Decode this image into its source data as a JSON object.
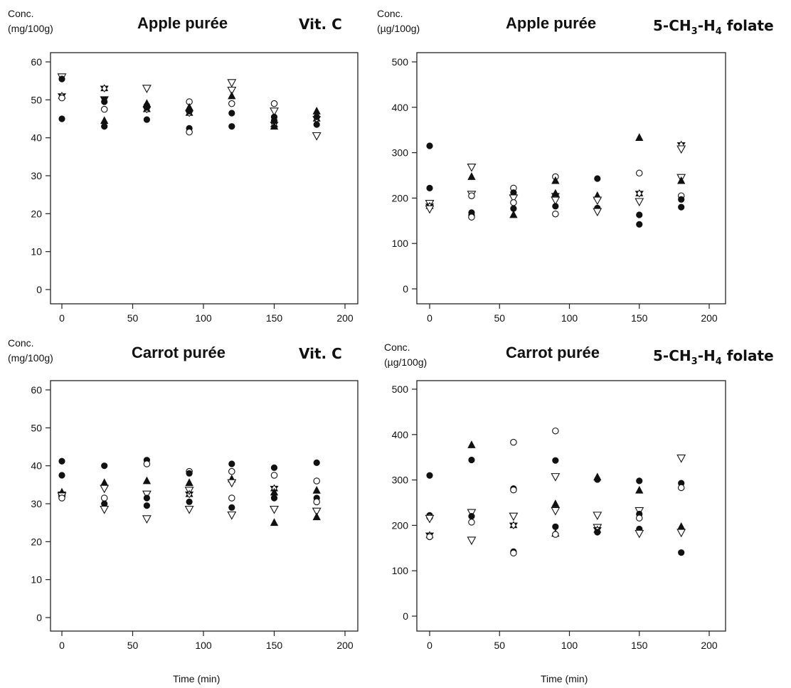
{
  "chart_data": [
    {
      "type": "scatter",
      "title": "Apple purée",
      "nutrient_label": "Vit. C",
      "ylabel_line1": "Conc.",
      "ylabel_line2": "(mg/100g)",
      "xlabel": "",
      "xlim": [
        0,
        200
      ],
      "ylim": [
        0,
        60
      ],
      "xticks": [
        0,
        50,
        100,
        150,
        200
      ],
      "yticks": [
        0,
        10,
        20,
        30,
        40,
        50,
        60
      ],
      "grid": false,
      "points": [
        {
          "x": 0,
          "y": 56,
          "m": "tri-down"
        },
        {
          "x": 0,
          "y": 55.5,
          "m": "dot"
        },
        {
          "x": 0,
          "y": 51,
          "m": "star"
        },
        {
          "x": 0,
          "y": 50.5,
          "m": "circle"
        },
        {
          "x": 0,
          "y": 45,
          "m": "dot"
        },
        {
          "x": 30,
          "y": 53,
          "m": "star"
        },
        {
          "x": 30,
          "y": 50,
          "m": "tri-down-filled"
        },
        {
          "x": 30,
          "y": 49.5,
          "m": "dot"
        },
        {
          "x": 30,
          "y": 47.5,
          "m": "circle"
        },
        {
          "x": 30,
          "y": 44.5,
          "m": "tri-up"
        },
        {
          "x": 30,
          "y": 43,
          "m": "dot"
        },
        {
          "x": 60,
          "y": 53,
          "m": "tri-down"
        },
        {
          "x": 60,
          "y": 49,
          "m": "tri-up"
        },
        {
          "x": 60,
          "y": 48.5,
          "m": "dot"
        },
        {
          "x": 60,
          "y": 48,
          "m": "dot"
        },
        {
          "x": 60,
          "y": 47.5,
          "m": "star"
        },
        {
          "x": 60,
          "y": 44.8,
          "m": "dot"
        },
        {
          "x": 90,
          "y": 49.5,
          "m": "circle"
        },
        {
          "x": 90,
          "y": 48,
          "m": "tri-up"
        },
        {
          "x": 90,
          "y": 47,
          "m": "dot"
        },
        {
          "x": 90,
          "y": 46.5,
          "m": "star"
        },
        {
          "x": 90,
          "y": 42.5,
          "m": "dot"
        },
        {
          "x": 90,
          "y": 41.5,
          "m": "circle"
        },
        {
          "x": 120,
          "y": 54.5,
          "m": "tri-down"
        },
        {
          "x": 120,
          "y": 52.5,
          "m": "tri-down"
        },
        {
          "x": 120,
          "y": 51,
          "m": "tri-up"
        },
        {
          "x": 120,
          "y": 49,
          "m": "circle"
        },
        {
          "x": 120,
          "y": 46.5,
          "m": "dot"
        },
        {
          "x": 120,
          "y": 43,
          "m": "dot"
        },
        {
          "x": 150,
          "y": 49,
          "m": "circle"
        },
        {
          "x": 150,
          "y": 47,
          "m": "tri-down"
        },
        {
          "x": 150,
          "y": 45.5,
          "m": "dot"
        },
        {
          "x": 150,
          "y": 44.5,
          "m": "dot"
        },
        {
          "x": 150,
          "y": 43.5,
          "m": "star"
        },
        {
          "x": 150,
          "y": 43,
          "m": "tri-up"
        },
        {
          "x": 180,
          "y": 47,
          "m": "tri-up"
        },
        {
          "x": 180,
          "y": 45.5,
          "m": "dot"
        },
        {
          "x": 180,
          "y": 45,
          "m": "star"
        },
        {
          "x": 180,
          "y": 43.5,
          "m": "dot"
        },
        {
          "x": 180,
          "y": 40.5,
          "m": "tri-down"
        }
      ]
    },
    {
      "type": "scatter",
      "title": "Apple purée",
      "nutrient_label": "5-CH3-H4 folate",
      "ylabel_line1": "Conc.",
      "ylabel_line2": "(µg/100g)",
      "xlabel": "",
      "xlim": [
        0,
        200
      ],
      "ylim": [
        0,
        500
      ],
      "xticks": [
        0,
        50,
        100,
        150,
        200
      ],
      "yticks": [
        0,
        100,
        200,
        300,
        400,
        500
      ],
      "grid": false,
      "points": [
        {
          "x": 0,
          "y": 315,
          "m": "dot"
        },
        {
          "x": 0,
          "y": 222,
          "m": "dot"
        },
        {
          "x": 0,
          "y": 188,
          "m": "tri-down"
        },
        {
          "x": 0,
          "y": 182,
          "m": "star"
        },
        {
          "x": 0,
          "y": 176,
          "m": "tri-down"
        },
        {
          "x": 30,
          "y": 268,
          "m": "tri-down"
        },
        {
          "x": 30,
          "y": 247,
          "m": "tri-up"
        },
        {
          "x": 30,
          "y": 208,
          "m": "tri-down"
        },
        {
          "x": 30,
          "y": 205,
          "m": "circle"
        },
        {
          "x": 30,
          "y": 168,
          "m": "dot"
        },
        {
          "x": 30,
          "y": 162,
          "m": "dot"
        },
        {
          "x": 30,
          "y": 158,
          "m": "circle"
        },
        {
          "x": 60,
          "y": 222,
          "m": "circle"
        },
        {
          "x": 60,
          "y": 212,
          "m": "dot"
        },
        {
          "x": 60,
          "y": 200,
          "m": "tri-down"
        },
        {
          "x": 60,
          "y": 190,
          "m": "circle"
        },
        {
          "x": 60,
          "y": 177,
          "m": "dot"
        },
        {
          "x": 60,
          "y": 163,
          "m": "tri-up"
        },
        {
          "x": 90,
          "y": 247,
          "m": "circle"
        },
        {
          "x": 90,
          "y": 238,
          "m": "tri-up"
        },
        {
          "x": 90,
          "y": 210,
          "m": "tri-up"
        },
        {
          "x": 90,
          "y": 205,
          "m": "star"
        },
        {
          "x": 90,
          "y": 195,
          "m": "tri-down"
        },
        {
          "x": 90,
          "y": 182,
          "m": "dot"
        },
        {
          "x": 90,
          "y": 165,
          "m": "circle"
        },
        {
          "x": 120,
          "y": 243,
          "m": "dot"
        },
        {
          "x": 120,
          "y": 205,
          "m": "tri-up"
        },
        {
          "x": 120,
          "y": 195,
          "m": "tri-down"
        },
        {
          "x": 120,
          "y": 178,
          "m": "dot"
        },
        {
          "x": 120,
          "y": 170,
          "m": "tri-down"
        },
        {
          "x": 150,
          "y": 333,
          "m": "tri-up"
        },
        {
          "x": 150,
          "y": 255,
          "m": "circle"
        },
        {
          "x": 150,
          "y": 210,
          "m": "star"
        },
        {
          "x": 150,
          "y": 192,
          "m": "tri-down"
        },
        {
          "x": 150,
          "y": 163,
          "m": "dot"
        },
        {
          "x": 150,
          "y": 142,
          "m": "dot"
        },
        {
          "x": 180,
          "y": 317,
          "m": "star"
        },
        {
          "x": 180,
          "y": 308,
          "m": "tri-down"
        },
        {
          "x": 180,
          "y": 245,
          "m": "tri-down"
        },
        {
          "x": 180,
          "y": 238,
          "m": "tri-up"
        },
        {
          "x": 180,
          "y": 205,
          "m": "circle"
        },
        {
          "x": 180,
          "y": 197,
          "m": "dot"
        },
        {
          "x": 180,
          "y": 180,
          "m": "dot"
        }
      ]
    },
    {
      "type": "scatter",
      "title": "Carrot purée",
      "nutrient_label": "Vit. C",
      "ylabel_line1": "Conc.",
      "ylabel_line2": "(mg/100g)",
      "xlabel": "Time (min)",
      "xlim": [
        0,
        200
      ],
      "ylim": [
        0,
        60
      ],
      "xticks": [
        0,
        50,
        100,
        150,
        200
      ],
      "yticks": [
        0,
        10,
        20,
        30,
        40,
        50,
        60
      ],
      "grid": false,
      "points": [
        {
          "x": 0,
          "y": 41.2,
          "m": "dot"
        },
        {
          "x": 0,
          "y": 37.5,
          "m": "dot"
        },
        {
          "x": 0,
          "y": 33,
          "m": "tri-up"
        },
        {
          "x": 0,
          "y": 32.5,
          "m": "star"
        },
        {
          "x": 0,
          "y": 32,
          "m": "tri-down"
        },
        {
          "x": 0,
          "y": 31.5,
          "m": "circle"
        },
        {
          "x": 30,
          "y": 40,
          "m": "dot"
        },
        {
          "x": 30,
          "y": 35.5,
          "m": "tri-up"
        },
        {
          "x": 30,
          "y": 34,
          "m": "tri-down"
        },
        {
          "x": 30,
          "y": 31.5,
          "m": "circle"
        },
        {
          "x": 30,
          "y": 30,
          "m": "dot"
        },
        {
          "x": 30,
          "y": 28.5,
          "m": "tri-down"
        },
        {
          "x": 60,
          "y": 41.5,
          "m": "dot"
        },
        {
          "x": 60,
          "y": 40.5,
          "m": "circle"
        },
        {
          "x": 60,
          "y": 36,
          "m": "tri-up"
        },
        {
          "x": 60,
          "y": 32.5,
          "m": "tri-down"
        },
        {
          "x": 60,
          "y": 31.5,
          "m": "dot"
        },
        {
          "x": 60,
          "y": 29.5,
          "m": "dot"
        },
        {
          "x": 60,
          "y": 26,
          "m": "tri-down"
        },
        {
          "x": 90,
          "y": 38.5,
          "m": "circle"
        },
        {
          "x": 90,
          "y": 38,
          "m": "dot"
        },
        {
          "x": 90,
          "y": 35.5,
          "m": "tri-up"
        },
        {
          "x": 90,
          "y": 33.5,
          "m": "tri-down"
        },
        {
          "x": 90,
          "y": 32.5,
          "m": "star"
        },
        {
          "x": 90,
          "y": 30.5,
          "m": "dot"
        },
        {
          "x": 90,
          "y": 28.5,
          "m": "tri-down"
        },
        {
          "x": 120,
          "y": 40.5,
          "m": "dot"
        },
        {
          "x": 120,
          "y": 38.5,
          "m": "circle"
        },
        {
          "x": 120,
          "y": 36.5,
          "m": "tri-up"
        },
        {
          "x": 120,
          "y": 35.5,
          "m": "tri-down"
        },
        {
          "x": 120,
          "y": 31.5,
          "m": "circle"
        },
        {
          "x": 120,
          "y": 29,
          "m": "dot"
        },
        {
          "x": 120,
          "y": 27,
          "m": "tri-down"
        },
        {
          "x": 150,
          "y": 39.5,
          "m": "dot"
        },
        {
          "x": 150,
          "y": 37.5,
          "m": "circle"
        },
        {
          "x": 150,
          "y": 34,
          "m": "star"
        },
        {
          "x": 150,
          "y": 33,
          "m": "tri-up"
        },
        {
          "x": 150,
          "y": 31.5,
          "m": "dot"
        },
        {
          "x": 150,
          "y": 28.5,
          "m": "tri-down"
        },
        {
          "x": 150,
          "y": 25,
          "m": "tri-up"
        },
        {
          "x": 180,
          "y": 40.8,
          "m": "dot"
        },
        {
          "x": 180,
          "y": 36,
          "m": "circle"
        },
        {
          "x": 180,
          "y": 33.5,
          "m": "tri-up"
        },
        {
          "x": 180,
          "y": 31.5,
          "m": "dot"
        },
        {
          "x": 180,
          "y": 30.5,
          "m": "circle"
        },
        {
          "x": 180,
          "y": 28,
          "m": "tri-down"
        },
        {
          "x": 180,
          "y": 26.5,
          "m": "tri-up"
        }
      ]
    },
    {
      "type": "scatter",
      "title": "Carrot purée",
      "nutrient_label": "5-CH3-H4 folate",
      "ylabel_line1": "Conc.",
      "ylabel_line2": "(µg/100g)",
      "xlabel": "Time (min)",
      "xlim": [
        0,
        200
      ],
      "ylim": [
        0,
        500
      ],
      "xticks": [
        0,
        50,
        100,
        150,
        200
      ],
      "yticks": [
        0,
        100,
        200,
        300,
        400,
        500
      ],
      "grid": false,
      "points": [
        {
          "x": 0,
          "y": 310,
          "m": "dot"
        },
        {
          "x": 0,
          "y": 222,
          "m": "dot"
        },
        {
          "x": 0,
          "y": 218,
          "m": "circle"
        },
        {
          "x": 0,
          "y": 215,
          "m": "tri-down"
        },
        {
          "x": 0,
          "y": 178,
          "m": "star"
        },
        {
          "x": 0,
          "y": 175,
          "m": "circle"
        },
        {
          "x": 30,
          "y": 377,
          "m": "tri-up"
        },
        {
          "x": 30,
          "y": 344,
          "m": "dot"
        },
        {
          "x": 30,
          "y": 228,
          "m": "tri-down"
        },
        {
          "x": 30,
          "y": 220,
          "m": "dot"
        },
        {
          "x": 30,
          "y": 207,
          "m": "circle"
        },
        {
          "x": 30,
          "y": 167,
          "m": "tri-down"
        },
        {
          "x": 60,
          "y": 383,
          "m": "circle"
        },
        {
          "x": 60,
          "y": 281,
          "m": "dot"
        },
        {
          "x": 60,
          "y": 278,
          "m": "circle"
        },
        {
          "x": 60,
          "y": 220,
          "m": "tri-down"
        },
        {
          "x": 60,
          "y": 200,
          "m": "star"
        },
        {
          "x": 60,
          "y": 142,
          "m": "dot"
        },
        {
          "x": 60,
          "y": 139,
          "m": "circle"
        },
        {
          "x": 90,
          "y": 408,
          "m": "circle"
        },
        {
          "x": 90,
          "y": 343,
          "m": "dot"
        },
        {
          "x": 90,
          "y": 307,
          "m": "tri-down"
        },
        {
          "x": 90,
          "y": 247,
          "m": "tri-up"
        },
        {
          "x": 90,
          "y": 232,
          "m": "tri-down"
        },
        {
          "x": 90,
          "y": 197,
          "m": "dot"
        },
        {
          "x": 90,
          "y": 182,
          "m": "tri-up"
        },
        {
          "x": 90,
          "y": 180,
          "m": "circle"
        },
        {
          "x": 120,
          "y": 306,
          "m": "tri-up"
        },
        {
          "x": 120,
          "y": 301,
          "m": "dot"
        },
        {
          "x": 120,
          "y": 222,
          "m": "tri-down"
        },
        {
          "x": 120,
          "y": 195,
          "m": "tri-down"
        },
        {
          "x": 120,
          "y": 190,
          "m": "star"
        },
        {
          "x": 120,
          "y": 185,
          "m": "dot"
        },
        {
          "x": 150,
          "y": 298,
          "m": "dot"
        },
        {
          "x": 150,
          "y": 277,
          "m": "tri-up"
        },
        {
          "x": 150,
          "y": 232,
          "m": "tri-down"
        },
        {
          "x": 150,
          "y": 225,
          "m": "dot"
        },
        {
          "x": 150,
          "y": 216,
          "m": "circle"
        },
        {
          "x": 150,
          "y": 192,
          "m": "dot"
        },
        {
          "x": 150,
          "y": 182,
          "m": "tri-down"
        },
        {
          "x": 180,
          "y": 348,
          "m": "tri-down"
        },
        {
          "x": 180,
          "y": 293,
          "m": "dot"
        },
        {
          "x": 180,
          "y": 283,
          "m": "circle"
        },
        {
          "x": 180,
          "y": 197,
          "m": "tri-up"
        },
        {
          "x": 180,
          "y": 184,
          "m": "tri-down"
        },
        {
          "x": 180,
          "y": 140,
          "m": "dot"
        }
      ]
    }
  ]
}
